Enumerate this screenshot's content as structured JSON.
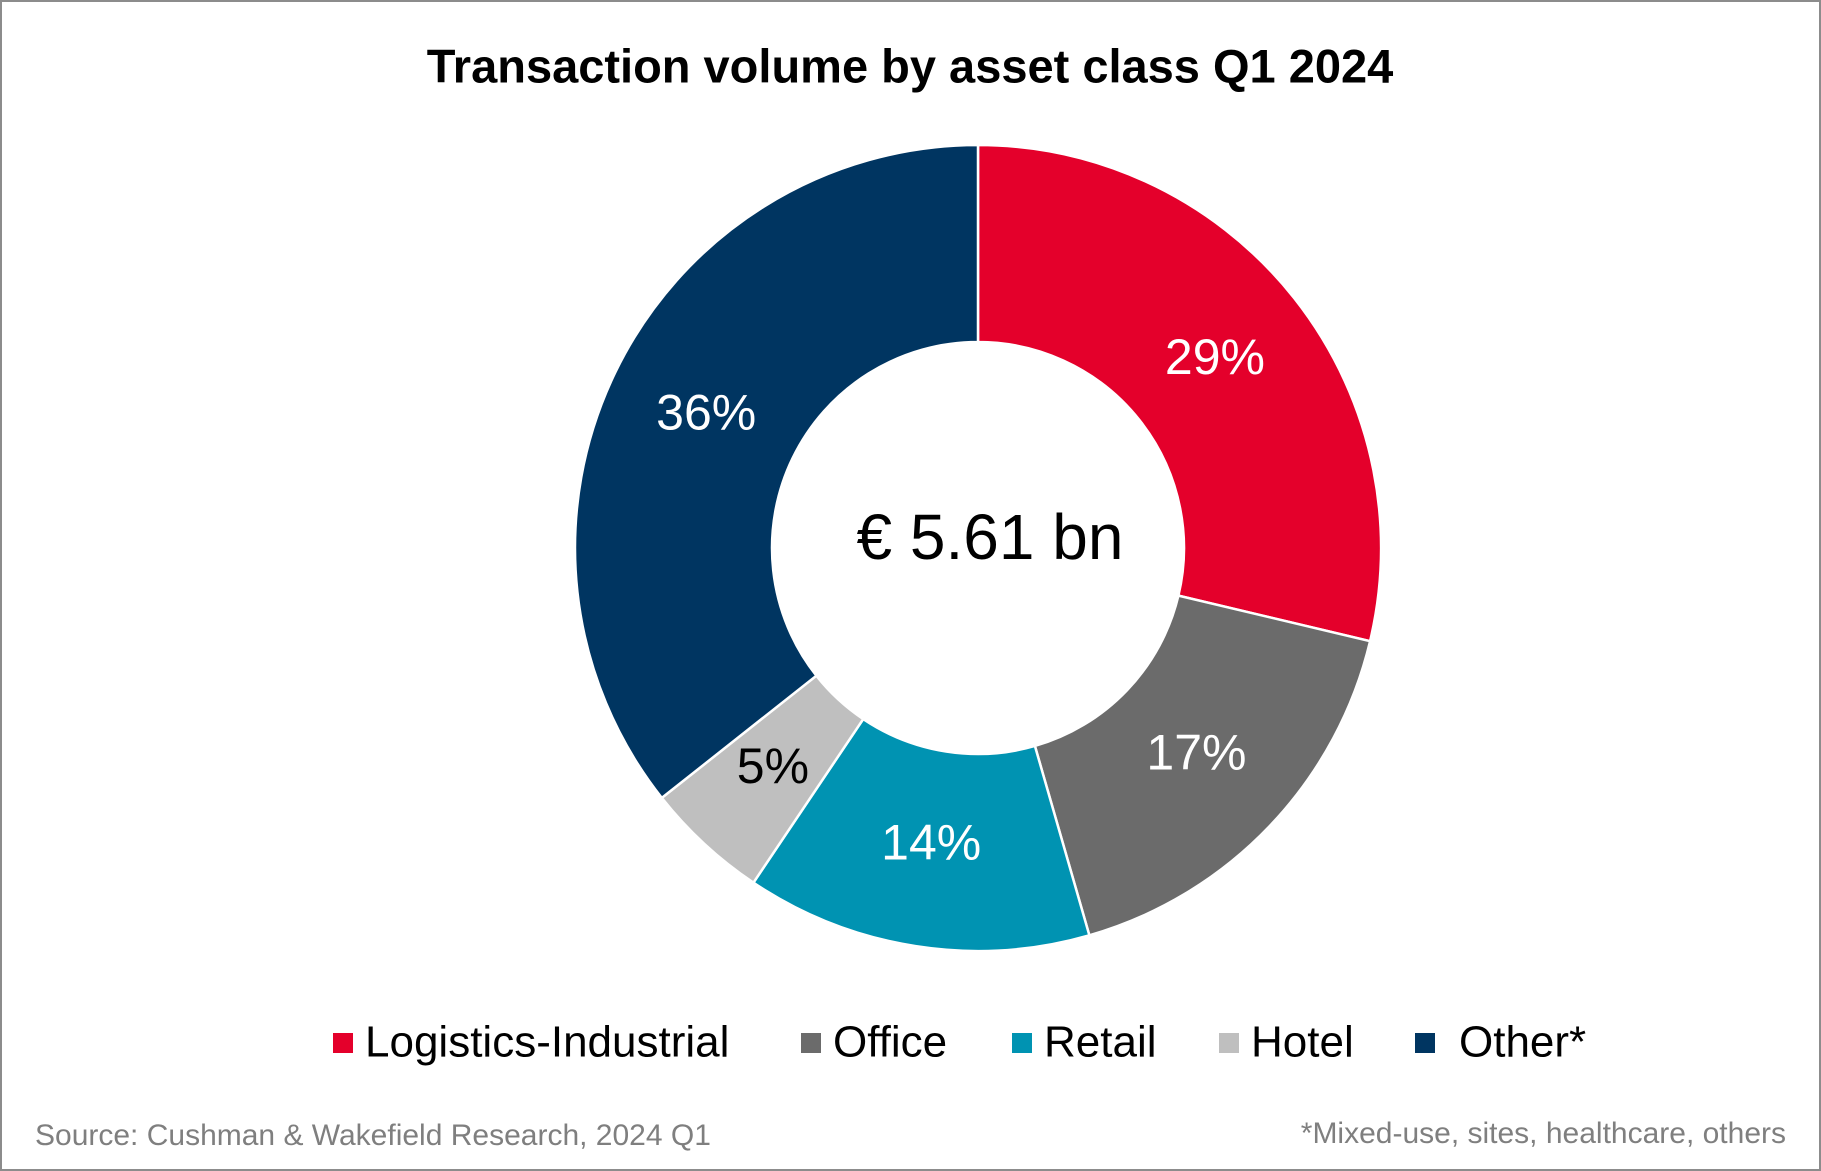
{
  "chart_data": {
    "type": "donut",
    "title": "Transaction volume by asset class Q1 2024",
    "center_label": "€ 5.61 bn",
    "categories": [
      "Logistics-Industrial",
      "Office",
      "Retail",
      "Hotel",
      "Other*"
    ],
    "values": [
      29,
      17,
      14,
      5,
      36
    ],
    "value_labels": [
      "29%",
      "17%",
      "14%",
      "5%",
      "36%"
    ],
    "colors": [
      "#e4002b",
      "#6b6b6b",
      "#0093b2",
      "#bfbfbf",
      "#003561"
    ],
    "legend": "bottom",
    "source": "Source: Cushman & Wakefield Research, 2024 Q1",
    "footnote": "*Mixed-use, sites, healthcare, others"
  }
}
